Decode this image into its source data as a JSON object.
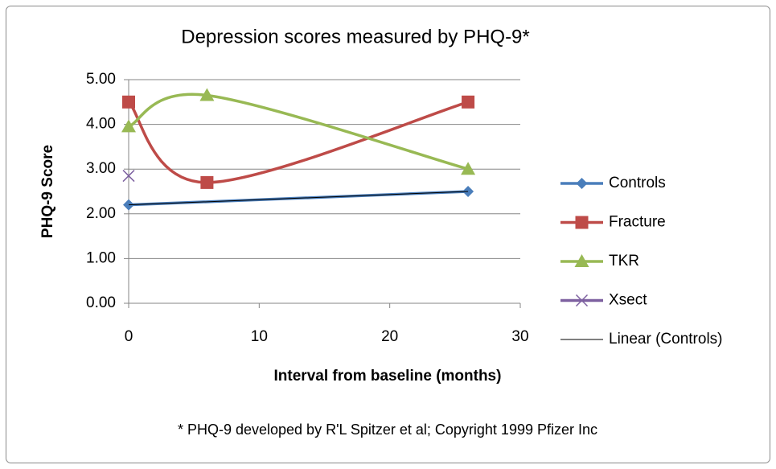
{
  "chart_data": {
    "type": "scatter",
    "title": "Depression scores measured by PHQ-9*",
    "xlabel": "Interval from baseline (months)",
    "ylabel": "PHQ-9 Score",
    "footnote": "* PHQ-9 developed by R'L Spitzer et al; Copyright 1999 Pfizer Inc",
    "xlim": [
      0,
      30
    ],
    "xticks": [
      0,
      10,
      20,
      30
    ],
    "ylim": [
      0,
      5
    ],
    "yticks": [
      {
        "value": 0,
        "label": "0.00"
      },
      {
        "value": 1,
        "label": "1.00"
      },
      {
        "value": 2,
        "label": "2.00"
      },
      {
        "value": 3,
        "label": "3.00"
      },
      {
        "value": 4,
        "label": "4.00"
      },
      {
        "value": 5,
        "label": "5.00"
      }
    ],
    "grid": true,
    "legend": "right",
    "series": [
      {
        "name": "Controls",
        "color": "#4a7ebb",
        "marker": "diamond",
        "smooth": false,
        "x": [
          0,
          26
        ],
        "values": [
          2.2,
          2.5
        ]
      },
      {
        "name": "Fracture",
        "color": "#be4b48",
        "marker": "square",
        "smooth": true,
        "x": [
          0,
          6,
          26
        ],
        "values": [
          4.5,
          2.7,
          4.5
        ]
      },
      {
        "name": "TKR",
        "color": "#98b954",
        "marker": "triangle",
        "smooth": true,
        "x": [
          0,
          6,
          26
        ],
        "values": [
          3.95,
          4.65,
          3.0
        ]
      },
      {
        "name": "Xsect",
        "color": "#7d60a0",
        "marker": "x",
        "smooth": false,
        "x": [
          0
        ],
        "values": [
          2.85
        ]
      },
      {
        "name": "Linear (Controls)",
        "color": "#000000",
        "marker": "none",
        "smooth": false,
        "x": [
          0,
          26
        ],
        "values": [
          2.2,
          2.5
        ]
      }
    ]
  }
}
